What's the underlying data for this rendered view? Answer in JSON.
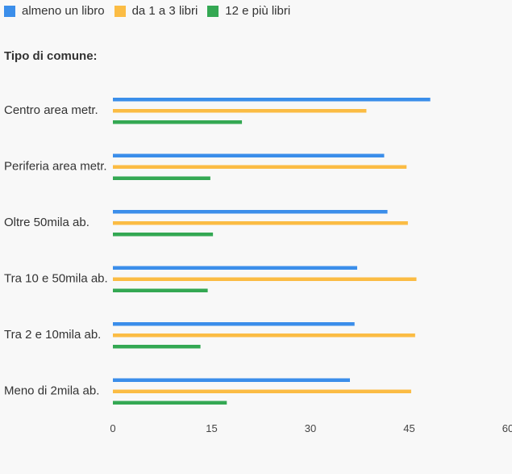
{
  "chart_data": {
    "type": "bar",
    "orientation": "horizontal",
    "ylabel": "Tipo di comune:",
    "categories": [
      "Centro area metr.",
      "Periferia area metr.",
      "Oltre 50mila ab.",
      "Tra 10 e 50mila ab.",
      "Tra 2 e 10mila ab.",
      "Meno di 2mila ab."
    ],
    "series": [
      {
        "name": "almeno un libro",
        "color": "#3b8eea",
        "values": [
          48.2,
          41.2,
          41.7,
          37.1,
          36.7,
          36.0
        ]
      },
      {
        "name": "da 1 a 3 libri",
        "color": "#fbbc44",
        "values": [
          38.5,
          44.6,
          44.8,
          46.1,
          45.9,
          45.3
        ]
      },
      {
        "name": "12 e più libri",
        "color": "#34a853",
        "values": [
          19.6,
          14.8,
          15.2,
          14.4,
          13.3,
          17.3
        ]
      }
    ],
    "xlim": [
      0,
      60
    ],
    "xticks": [
      "0",
      "15",
      "30",
      "45",
      "60"
    ],
    "grid": false,
    "legend": "top-left"
  }
}
